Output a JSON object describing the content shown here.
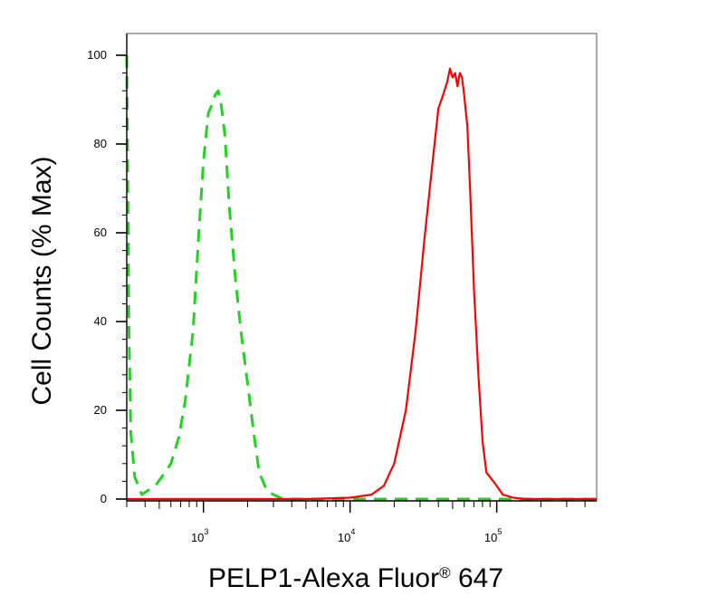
{
  "chart_data": {
    "type": "line",
    "xlabel": {
      "main": "PELP1-Alexa Fluor",
      "mark": "®",
      "tail": " 647"
    },
    "ylabel": "Cell Counts (% Max)",
    "x_scale": "log",
    "xlim": [
      300,
      480000
    ],
    "ylim": [
      0,
      100
    ],
    "y_ticks": [
      0,
      20,
      40,
      60,
      80,
      100
    ],
    "x_tick_labels": [
      {
        "value": 1000,
        "base": "10",
        "exp": "3"
      },
      {
        "value": 10000,
        "base": "10",
        "exp": "4"
      },
      {
        "value": 100000,
        "base": "10",
        "exp": "5"
      }
    ],
    "grid": false,
    "series": [
      {
        "color": "#21d321",
        "style": "dashed",
        "x": [
          300,
          310,
          320,
          340,
          360,
          380,
          420,
          470,
          520,
          600,
          680,
          750,
          850,
          930,
          1000,
          1080,
          1150,
          1200,
          1260,
          1320,
          1400,
          1500,
          1650,
          1800,
          2000,
          2200,
          2400,
          2700,
          3000,
          3500,
          5000,
          10000,
          30000,
          100000,
          480000
        ],
        "y": [
          100,
          40,
          15,
          5,
          3,
          1,
          2,
          3,
          5,
          8,
          14,
          22,
          38,
          60,
          76,
          87,
          89,
          91,
          92,
          89,
          82,
          66,
          50,
          38,
          26,
          15,
          6,
          2,
          1,
          0,
          0,
          0,
          0,
          0,
          0
        ]
      },
      {
        "color": "#ff0000",
        "style": "solid",
        "x": [
          300,
          5000,
          10000,
          14000,
          17000,
          20000,
          24000,
          28000,
          32000,
          36000,
          40000,
          43000,
          46000,
          48000,
          50000,
          52000,
          54000,
          56000,
          58000,
          60000,
          63000,
          66000,
          70000,
          75000,
          80000,
          85000,
          95000,
          110000,
          130000,
          160000,
          480000
        ],
        "y": [
          0,
          0,
          0.3,
          1,
          3,
          8,
          20,
          38,
          58,
          74,
          88,
          91,
          94,
          97,
          95,
          96,
          93,
          96,
          95,
          91,
          84,
          69,
          47,
          28,
          13,
          6,
          4,
          1,
          0.3,
          0,
          0
        ]
      }
    ]
  }
}
